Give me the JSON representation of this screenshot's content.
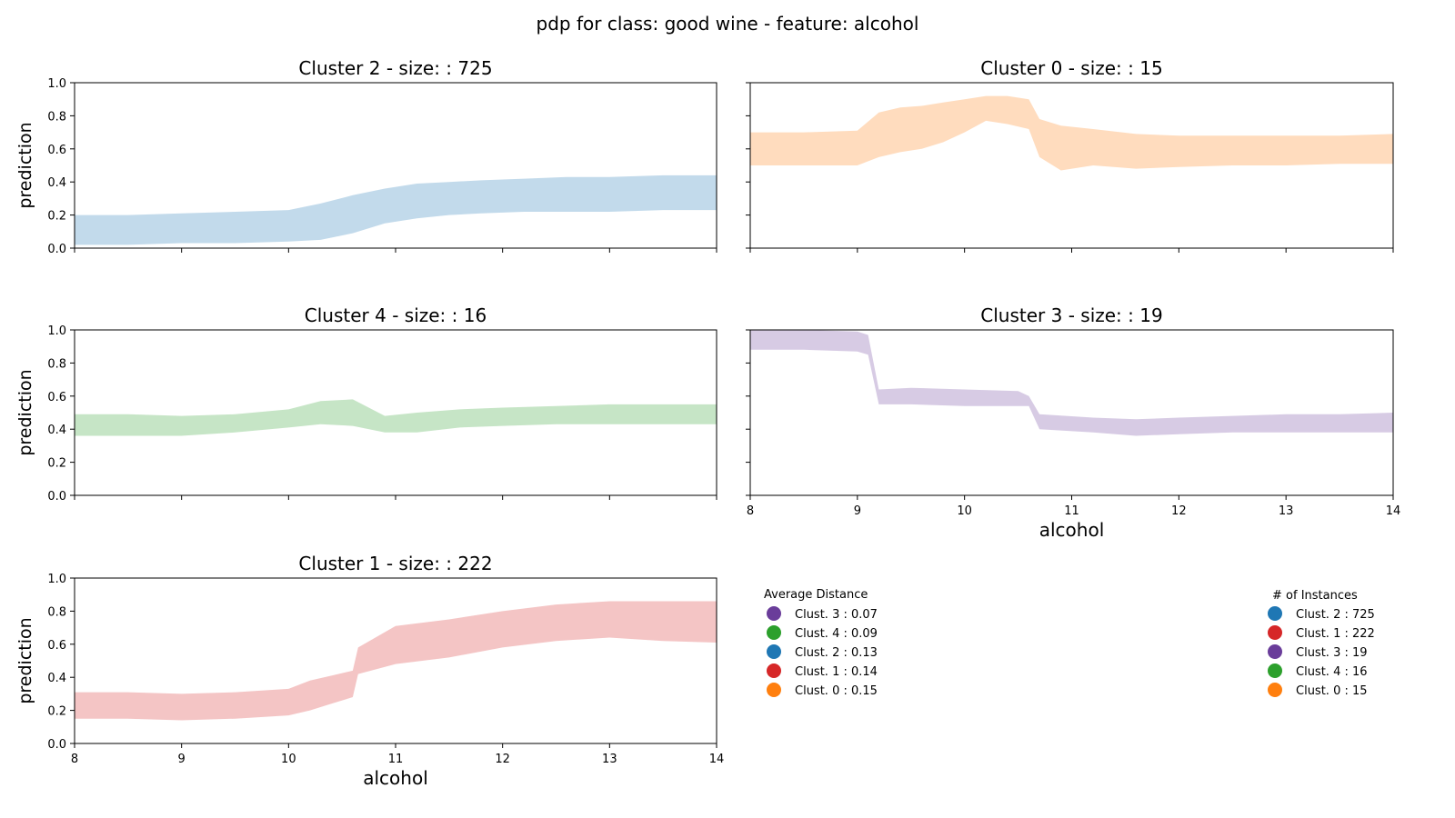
{
  "figure_title": "pdp for class: good wine - feature: alcohol",
  "colors": {
    "cluster_0": "#ff7f0e",
    "cluster_1": "#d62728",
    "cluster_2": "#1f77b4",
    "cluster_3": "#6a3d9a",
    "cluster_4": "#2ca02c"
  },
  "chart_data": [
    {
      "type": "area",
      "title": "Cluster 2 - size:  : 725",
      "ylabel": "prediction",
      "xlabel": "",
      "xlim": [
        8,
        14
      ],
      "ylim": [
        0,
        1
      ],
      "yticks": [
        "0.0",
        "0.2",
        "0.4",
        "0.6",
        "0.8",
        "1.0"
      ],
      "xticks": [],
      "color": "#1f77b4",
      "band": {
        "x": [
          8,
          8.5,
          9,
          9.5,
          10,
          10.3,
          10.6,
          10.9,
          11.2,
          11.5,
          11.8,
          12.2,
          12.6,
          13,
          13.5,
          14
        ],
        "lower": [
          0.02,
          0.02,
          0.03,
          0.03,
          0.04,
          0.05,
          0.09,
          0.15,
          0.18,
          0.2,
          0.21,
          0.22,
          0.22,
          0.22,
          0.23,
          0.23
        ],
        "upper": [
          0.2,
          0.2,
          0.21,
          0.22,
          0.23,
          0.27,
          0.32,
          0.36,
          0.39,
          0.4,
          0.41,
          0.42,
          0.43,
          0.43,
          0.44,
          0.44
        ]
      }
    },
    {
      "type": "area",
      "title": "Cluster 0 - size:  : 15",
      "ylabel": "",
      "xlabel": "",
      "xlim": [
        8,
        14
      ],
      "ylim": [
        0,
        1
      ],
      "yticks": [],
      "xticks": [],
      "color": "#ff7f0e",
      "band": {
        "x": [
          8,
          8.5,
          9.0,
          9.2,
          9.4,
          9.6,
          9.8,
          10.0,
          10.2,
          10.4,
          10.6,
          10.7,
          10.9,
          11.2,
          11.6,
          12,
          12.5,
          13,
          13.5,
          14
        ],
        "lower": [
          0.5,
          0.5,
          0.5,
          0.55,
          0.58,
          0.6,
          0.64,
          0.7,
          0.77,
          0.75,
          0.72,
          0.55,
          0.47,
          0.5,
          0.48,
          0.49,
          0.5,
          0.5,
          0.51,
          0.51
        ],
        "upper": [
          0.7,
          0.7,
          0.71,
          0.82,
          0.85,
          0.86,
          0.88,
          0.9,
          0.92,
          0.92,
          0.9,
          0.78,
          0.74,
          0.72,
          0.69,
          0.68,
          0.68,
          0.68,
          0.68,
          0.69
        ]
      }
    },
    {
      "type": "area",
      "title": "Cluster 4 - size:  : 16",
      "ylabel": "prediction",
      "xlabel": "",
      "xlim": [
        8,
        14
      ],
      "ylim": [
        0,
        1
      ],
      "yticks": [
        "0.0",
        "0.2",
        "0.4",
        "0.6",
        "0.8",
        "1.0"
      ],
      "xticks": [],
      "color": "#2ca02c",
      "band": {
        "x": [
          8,
          8.5,
          9,
          9.5,
          10,
          10.3,
          10.6,
          10.9,
          11.2,
          11.6,
          12,
          12.5,
          13,
          13.5,
          14
        ],
        "lower": [
          0.36,
          0.36,
          0.36,
          0.38,
          0.41,
          0.43,
          0.42,
          0.38,
          0.38,
          0.41,
          0.42,
          0.43,
          0.43,
          0.43,
          0.43
        ],
        "upper": [
          0.49,
          0.49,
          0.48,
          0.49,
          0.52,
          0.57,
          0.58,
          0.48,
          0.5,
          0.52,
          0.53,
          0.54,
          0.55,
          0.55,
          0.55
        ]
      }
    },
    {
      "type": "area",
      "title": "Cluster 3 - size:  : 19",
      "ylabel": "",
      "xlabel": "alcohol",
      "xlim": [
        8,
        14
      ],
      "ylim": [
        0,
        1
      ],
      "yticks": [],
      "xticks": [
        "8",
        "9",
        "10",
        "11",
        "12",
        "13",
        "14"
      ],
      "color": "#6a3d9a",
      "band": {
        "x": [
          8,
          8.5,
          9.0,
          9.1,
          9.2,
          9.5,
          10,
          10.5,
          10.6,
          10.7,
          11.2,
          11.6,
          12,
          12.5,
          13,
          13.5,
          14
        ],
        "lower": [
          0.88,
          0.88,
          0.87,
          0.85,
          0.55,
          0.55,
          0.54,
          0.54,
          0.54,
          0.4,
          0.38,
          0.36,
          0.37,
          0.38,
          0.38,
          0.38,
          0.38
        ],
        "upper": [
          1.0,
          1.0,
          0.99,
          0.97,
          0.64,
          0.65,
          0.64,
          0.63,
          0.6,
          0.49,
          0.47,
          0.46,
          0.47,
          0.48,
          0.49,
          0.49,
          0.5
        ]
      }
    },
    {
      "type": "area",
      "title": "Cluster 1 - size:  : 222",
      "ylabel": "prediction",
      "xlabel": "alcohol",
      "xlim": [
        8,
        14
      ],
      "ylim": [
        0,
        1
      ],
      "yticks": [
        "0.0",
        "0.2",
        "0.4",
        "0.6",
        "0.8",
        "1.0"
      ],
      "xticks": [
        "8",
        "9",
        "10",
        "11",
        "12",
        "13",
        "14"
      ],
      "color": "#d62728",
      "band": {
        "x": [
          8,
          8.5,
          9,
          9.5,
          10,
          10.2,
          10.4,
          10.6,
          10.65,
          11,
          11.5,
          12,
          12.5,
          13,
          13.5,
          14
        ],
        "lower": [
          0.15,
          0.15,
          0.14,
          0.15,
          0.17,
          0.2,
          0.24,
          0.28,
          0.42,
          0.48,
          0.52,
          0.58,
          0.62,
          0.64,
          0.62,
          0.61
        ],
        "upper": [
          0.31,
          0.31,
          0.3,
          0.31,
          0.33,
          0.38,
          0.41,
          0.44,
          0.58,
          0.71,
          0.75,
          0.8,
          0.84,
          0.86,
          0.86,
          0.86
        ]
      }
    }
  ],
  "legend_distance": {
    "title": "Average Distance",
    "items": [
      {
        "label": "Clust. 3 : 0.07",
        "color": "#6a3d9a"
      },
      {
        "label": "Clust. 4 : 0.09",
        "color": "#2ca02c"
      },
      {
        "label": "Clust. 2 : 0.13",
        "color": "#1f77b4"
      },
      {
        "label": "Clust. 1 : 0.14",
        "color": "#d62728"
      },
      {
        "label": "Clust. 0 : 0.15",
        "color": "#ff7f0e"
      }
    ]
  },
  "legend_instances": {
    "title": "# of Instances",
    "items": [
      {
        "label": "Clust. 2 : 725",
        "color": "#1f77b4"
      },
      {
        "label": "Clust. 1 : 222",
        "color": "#d62728"
      },
      {
        "label": "Clust. 3 : 19",
        "color": "#6a3d9a"
      },
      {
        "label": "Clust. 4 : 16",
        "color": "#2ca02c"
      },
      {
        "label": "Clust. 0 : 15",
        "color": "#ff7f0e"
      }
    ]
  }
}
